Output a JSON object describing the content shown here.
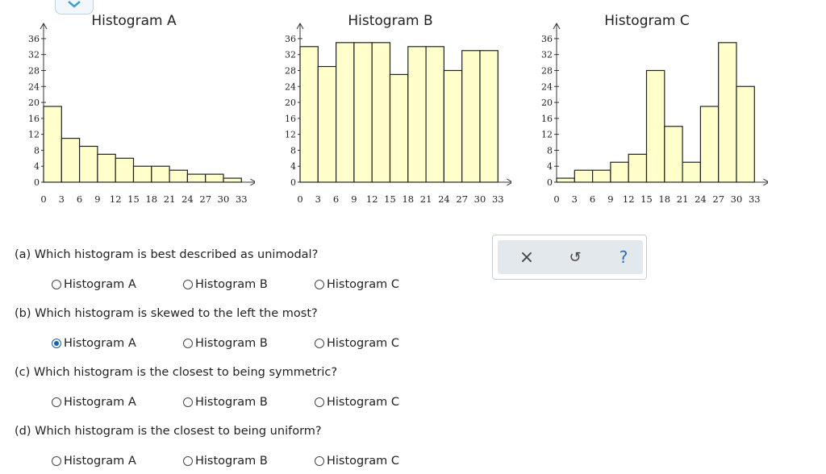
{
  "histograms": [
    {
      "title": "Histogram A",
      "chart_data": {
        "type": "bar",
        "title": "Histogram A",
        "x_ticks": [
          "0",
          "3",
          "6",
          "9",
          "12",
          "15",
          "18",
          "21",
          "24",
          "27",
          "30",
          "33"
        ],
        "y_ticks": [
          "0",
          "4",
          "8",
          "12",
          "16",
          "20",
          "24",
          "28",
          "32",
          "36"
        ],
        "bin_edges": [
          0,
          3,
          6,
          9,
          12,
          15,
          18,
          21,
          24,
          27,
          30,
          33
        ],
        "values": [
          19,
          11,
          9,
          7,
          6,
          4,
          4,
          3,
          2,
          2,
          1
        ],
        "ylim": [
          0,
          38
        ],
        "grid": false
      }
    },
    {
      "title": "Histogram B",
      "chart_data": {
        "type": "bar",
        "title": "Histogram B",
        "x_ticks": [
          "0",
          "3",
          "6",
          "9",
          "12",
          "15",
          "18",
          "21",
          "24",
          "27",
          "30",
          "33"
        ],
        "y_ticks": [
          "0",
          "4",
          "8",
          "12",
          "16",
          "20",
          "24",
          "28",
          "32",
          "36"
        ],
        "bin_edges": [
          0,
          3,
          6,
          9,
          12,
          15,
          18,
          21,
          24,
          27,
          30,
          33
        ],
        "values": [
          34,
          29,
          35,
          35,
          35,
          27,
          34,
          34,
          28,
          33,
          33
        ],
        "ylim": [
          0,
          38
        ],
        "grid": false
      }
    },
    {
      "title": "Histogram C",
      "chart_data": {
        "type": "bar",
        "title": "Histogram C",
        "x_ticks": [
          "0",
          "3",
          "6",
          "9",
          "12",
          "15",
          "18",
          "21",
          "24",
          "27",
          "30",
          "33"
        ],
        "y_ticks": [
          "0",
          "4",
          "8",
          "12",
          "16",
          "20",
          "24",
          "28",
          "32",
          "36"
        ],
        "bin_edges": [
          0,
          3,
          6,
          9,
          12,
          15,
          18,
          21,
          24,
          27,
          30,
          33
        ],
        "values": [
          1,
          3,
          3,
          5,
          7,
          28,
          14,
          5,
          19,
          35,
          24
        ],
        "ylim": [
          0,
          38
        ],
        "grid": false
      }
    }
  ],
  "questions": [
    {
      "text": "(a) Which histogram is best described as unimodal?",
      "options": [
        "Histogram A",
        "Histogram B",
        "Histogram C"
      ],
      "selected": -1
    },
    {
      "text": "(b) Which histogram is skewed to the left the most?",
      "options": [
        "Histogram A",
        "Histogram B",
        "Histogram C"
      ],
      "selected": 0
    },
    {
      "text": "(c) Which histogram is the closest to being symmetric?",
      "options": [
        "Histogram A",
        "Histogram B",
        "Histogram C"
      ],
      "selected": -1
    },
    {
      "text": "(d) Which histogram is the closest to being uniform?",
      "options": [
        "Histogram A",
        "Histogram B",
        "Histogram C"
      ],
      "selected": -1
    }
  ],
  "toolbar": {
    "clear_icon": "x-icon",
    "clear_glyph": "×",
    "undo_icon": "undo-icon",
    "undo_glyph": "↺",
    "help_icon": "help-icon",
    "help_glyph": "?"
  },
  "colors": {
    "bar_fill": "#ffffcc",
    "bar_stroke": "#222222",
    "accent": "#1a5fb4",
    "help": "#2b6cb0"
  }
}
